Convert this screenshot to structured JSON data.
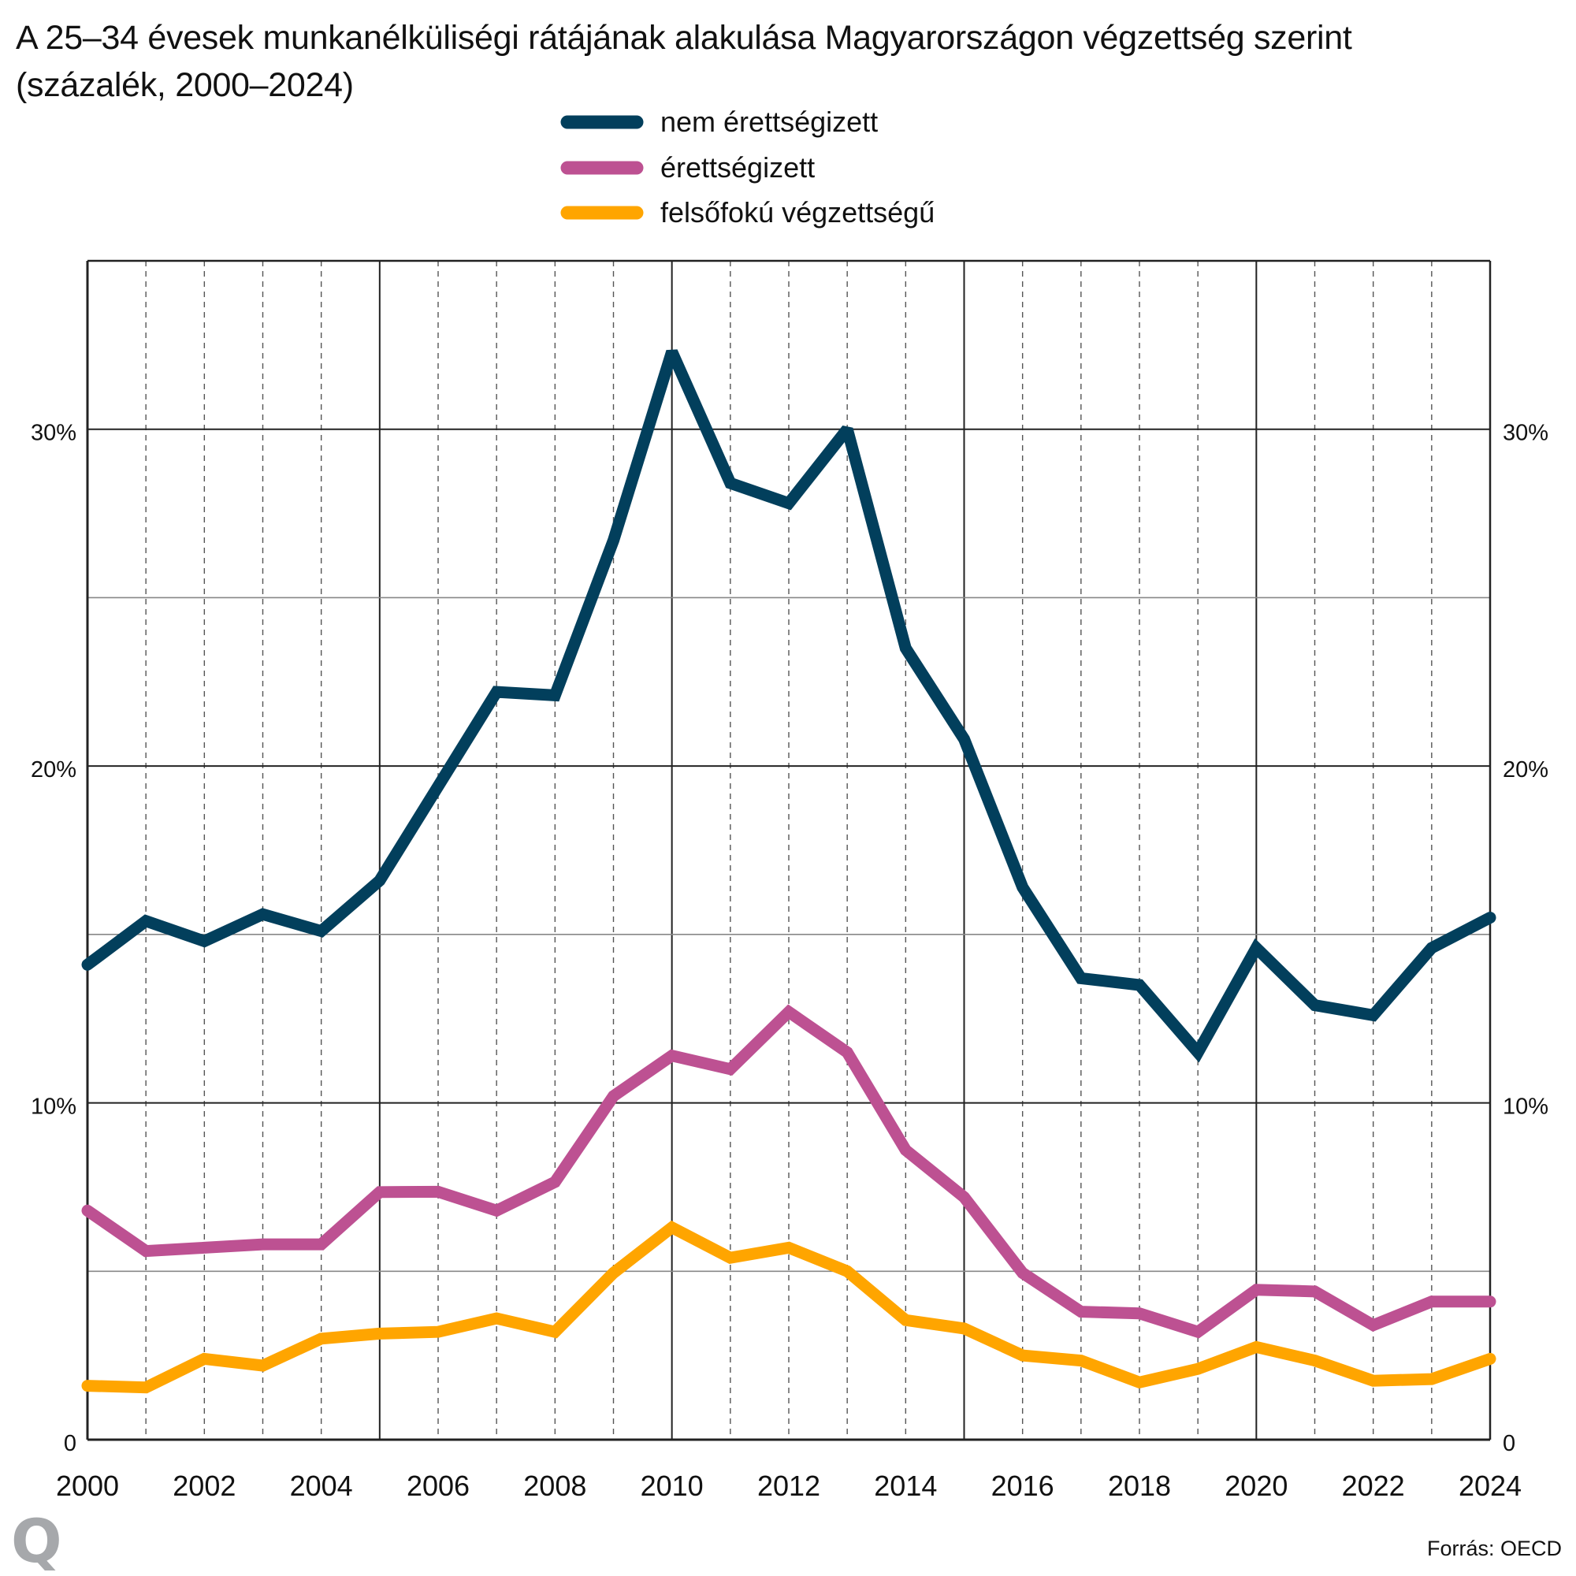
{
  "title": {
    "line1": "A 25–34 évesek munkanélküliségi rátájának alakulása Magyarországon végzettség szerint",
    "line2": "(százalék, 2000–2024)"
  },
  "source": "Forrás: OECD",
  "logo": "Q",
  "colors": {
    "nem_erettsegizett": "#023f5c",
    "erettsegizett": "#bd5192",
    "felsofoku": "#ffa500",
    "grid_major": "#222222",
    "grid_minor": "#888888",
    "logo": "#a6a8ab"
  },
  "chart_data": {
    "type": "line",
    "title": "A 25–34 évesek munkanélküliségi rátájának alakulása Magyarországon végzettség szerint (százalék, 2000–2024)",
    "xlabel": "",
    "ylabel": "",
    "x": [
      2000,
      2001,
      2002,
      2003,
      2004,
      2005,
      2006,
      2007,
      2008,
      2009,
      2010,
      2011,
      2012,
      2013,
      2014,
      2015,
      2016,
      2017,
      2018,
      2019,
      2020,
      2021,
      2022,
      2023,
      2024
    ],
    "xlim": [
      2000,
      2024
    ],
    "ylim": [
      0,
      35
    ],
    "x_ticks": [
      "2000",
      "2002",
      "2004",
      "2006",
      "2008",
      "2010",
      "2012",
      "2014",
      "2016",
      "2018",
      "2020",
      "2022",
      "2024"
    ],
    "y_ticks": [
      {
        "value": 0,
        "label": "0"
      },
      {
        "value": 10,
        "label": "10%"
      },
      {
        "value": 20,
        "label": "20%"
      },
      {
        "value": 30,
        "label": "30%"
      }
    ],
    "y_gridlines": [
      0,
      5,
      10,
      15,
      20,
      25,
      30,
      35
    ],
    "grid": true,
    "y_axis_both_sides": true,
    "legend_position": "top-center",
    "series": [
      {
        "name": "nem érettségizett",
        "color": "#023f5c",
        "values": [
          14.1,
          15.4,
          14.8,
          15.6,
          15.1,
          16.6,
          19.4,
          22.2,
          22.1,
          26.7,
          32.3,
          28.4,
          27.8,
          30.0,
          23.5,
          20.8,
          16.4,
          13.7,
          13.5,
          11.5,
          14.6,
          12.9,
          12.6,
          14.6,
          15.5
        ]
      },
      {
        "name": "érettségizett",
        "color": "#bd5192",
        "values": [
          6.8,
          5.6,
          5.7,
          5.8,
          5.8,
          7.35,
          7.36,
          6.8,
          7.65,
          10.2,
          11.4,
          11.0,
          12.7,
          11.5,
          8.6,
          7.2,
          4.95,
          3.8,
          3.75,
          3.2,
          4.45,
          4.4,
          3.4,
          4.1,
          4.1
        ]
      },
      {
        "name": "felsőfokú végzettségű",
        "color": "#ffa500",
        "values": [
          1.6,
          1.55,
          2.4,
          2.2,
          3.0,
          3.15,
          3.2,
          3.6,
          3.2,
          4.95,
          6.3,
          5.4,
          5.7,
          5.0,
          3.55,
          3.3,
          2.5,
          2.35,
          1.7,
          2.1,
          2.75,
          2.35,
          1.75,
          1.8,
          2.4
        ]
      }
    ]
  }
}
